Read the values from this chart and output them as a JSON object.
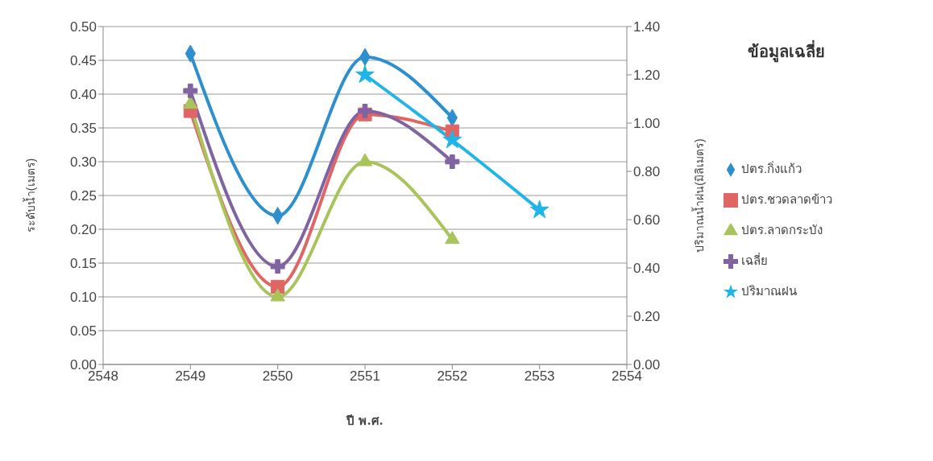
{
  "chart_data": {
    "type": "line",
    "xlabel": "ปี พ.ศ.",
    "ylabel": "ระดับน้ำ(เมตร)",
    "y2label": "ปริมาณน้ำฝน(มิลิเมตร)",
    "legend_title": "ข้อมูลเฉลี่ย",
    "x": [
      2549,
      2550,
      2551,
      2552,
      2553
    ],
    "series": [
      {
        "name": "ปตร.กิ่งแก้ว",
        "color": "#2e8fcf",
        "marker": "diamond",
        "values": [
          0.46,
          0.22,
          0.455,
          0.365,
          null
        ]
      },
      {
        "name": "ปตร.ชวดลาดข้าว",
        "color": "#e06666",
        "marker": "square",
        "values": [
          0.375,
          0.115,
          0.37,
          0.345,
          null
        ]
      },
      {
        "name": "ปตร.ลาดกระบัง",
        "color": "#a8c45a",
        "marker": "triangle",
        "values": [
          0.385,
          0.1,
          0.3,
          0.185,
          null
        ]
      },
      {
        "name": "เฉลี่ย",
        "color": "#8064a2",
        "marker": "cross",
        "values": [
          0.405,
          0.145,
          0.375,
          0.3,
          null
        ]
      },
      {
        "name": "ปริมาณฝน",
        "color": "#1fb5e6",
        "marker": "star",
        "axis": "y2",
        "values": [
          null,
          null,
          1.2,
          0.93,
          0.64
        ]
      }
    ],
    "xlim": [
      2548,
      2554
    ],
    "xticks": [
      2548,
      2549,
      2550,
      2551,
      2552,
      2553,
      2554
    ],
    "ylim": [
      0,
      0.5
    ],
    "yticks": [
      {
        "value": 0,
        "label": "0.00"
      },
      {
        "value": 0.05,
        "label": "0.05"
      },
      {
        "value": 0.1,
        "label": "0.10"
      },
      {
        "value": 0.15,
        "label": "0.15"
      },
      {
        "value": 0.2,
        "label": "0.20"
      },
      {
        "value": 0.25,
        "label": "0.25"
      },
      {
        "value": 0.3,
        "label": "0.30"
      },
      {
        "value": 0.35,
        "label": "0.35"
      },
      {
        "value": 0.4,
        "label": "0.40"
      },
      {
        "value": 0.45,
        "label": "0.45"
      },
      {
        "value": 0.5,
        "label": "0.50"
      }
    ],
    "y2lim": [
      0,
      1.4
    ],
    "y2ticks": [
      {
        "value": 0,
        "label": "0.00"
      },
      {
        "value": 0.2,
        "label": "0.20"
      },
      {
        "value": 0.4,
        "label": "0.40"
      },
      {
        "value": 0.6,
        "label": "0.60"
      },
      {
        "value": 0.8,
        "label": "0.80"
      },
      {
        "value": 1,
        "label": "1.00"
      },
      {
        "value": 1.2,
        "label": "1.20"
      },
      {
        "value": 1.4,
        "label": "1.40"
      }
    ],
    "grid": "y",
    "legend": "right",
    "line_style": "solid"
  }
}
